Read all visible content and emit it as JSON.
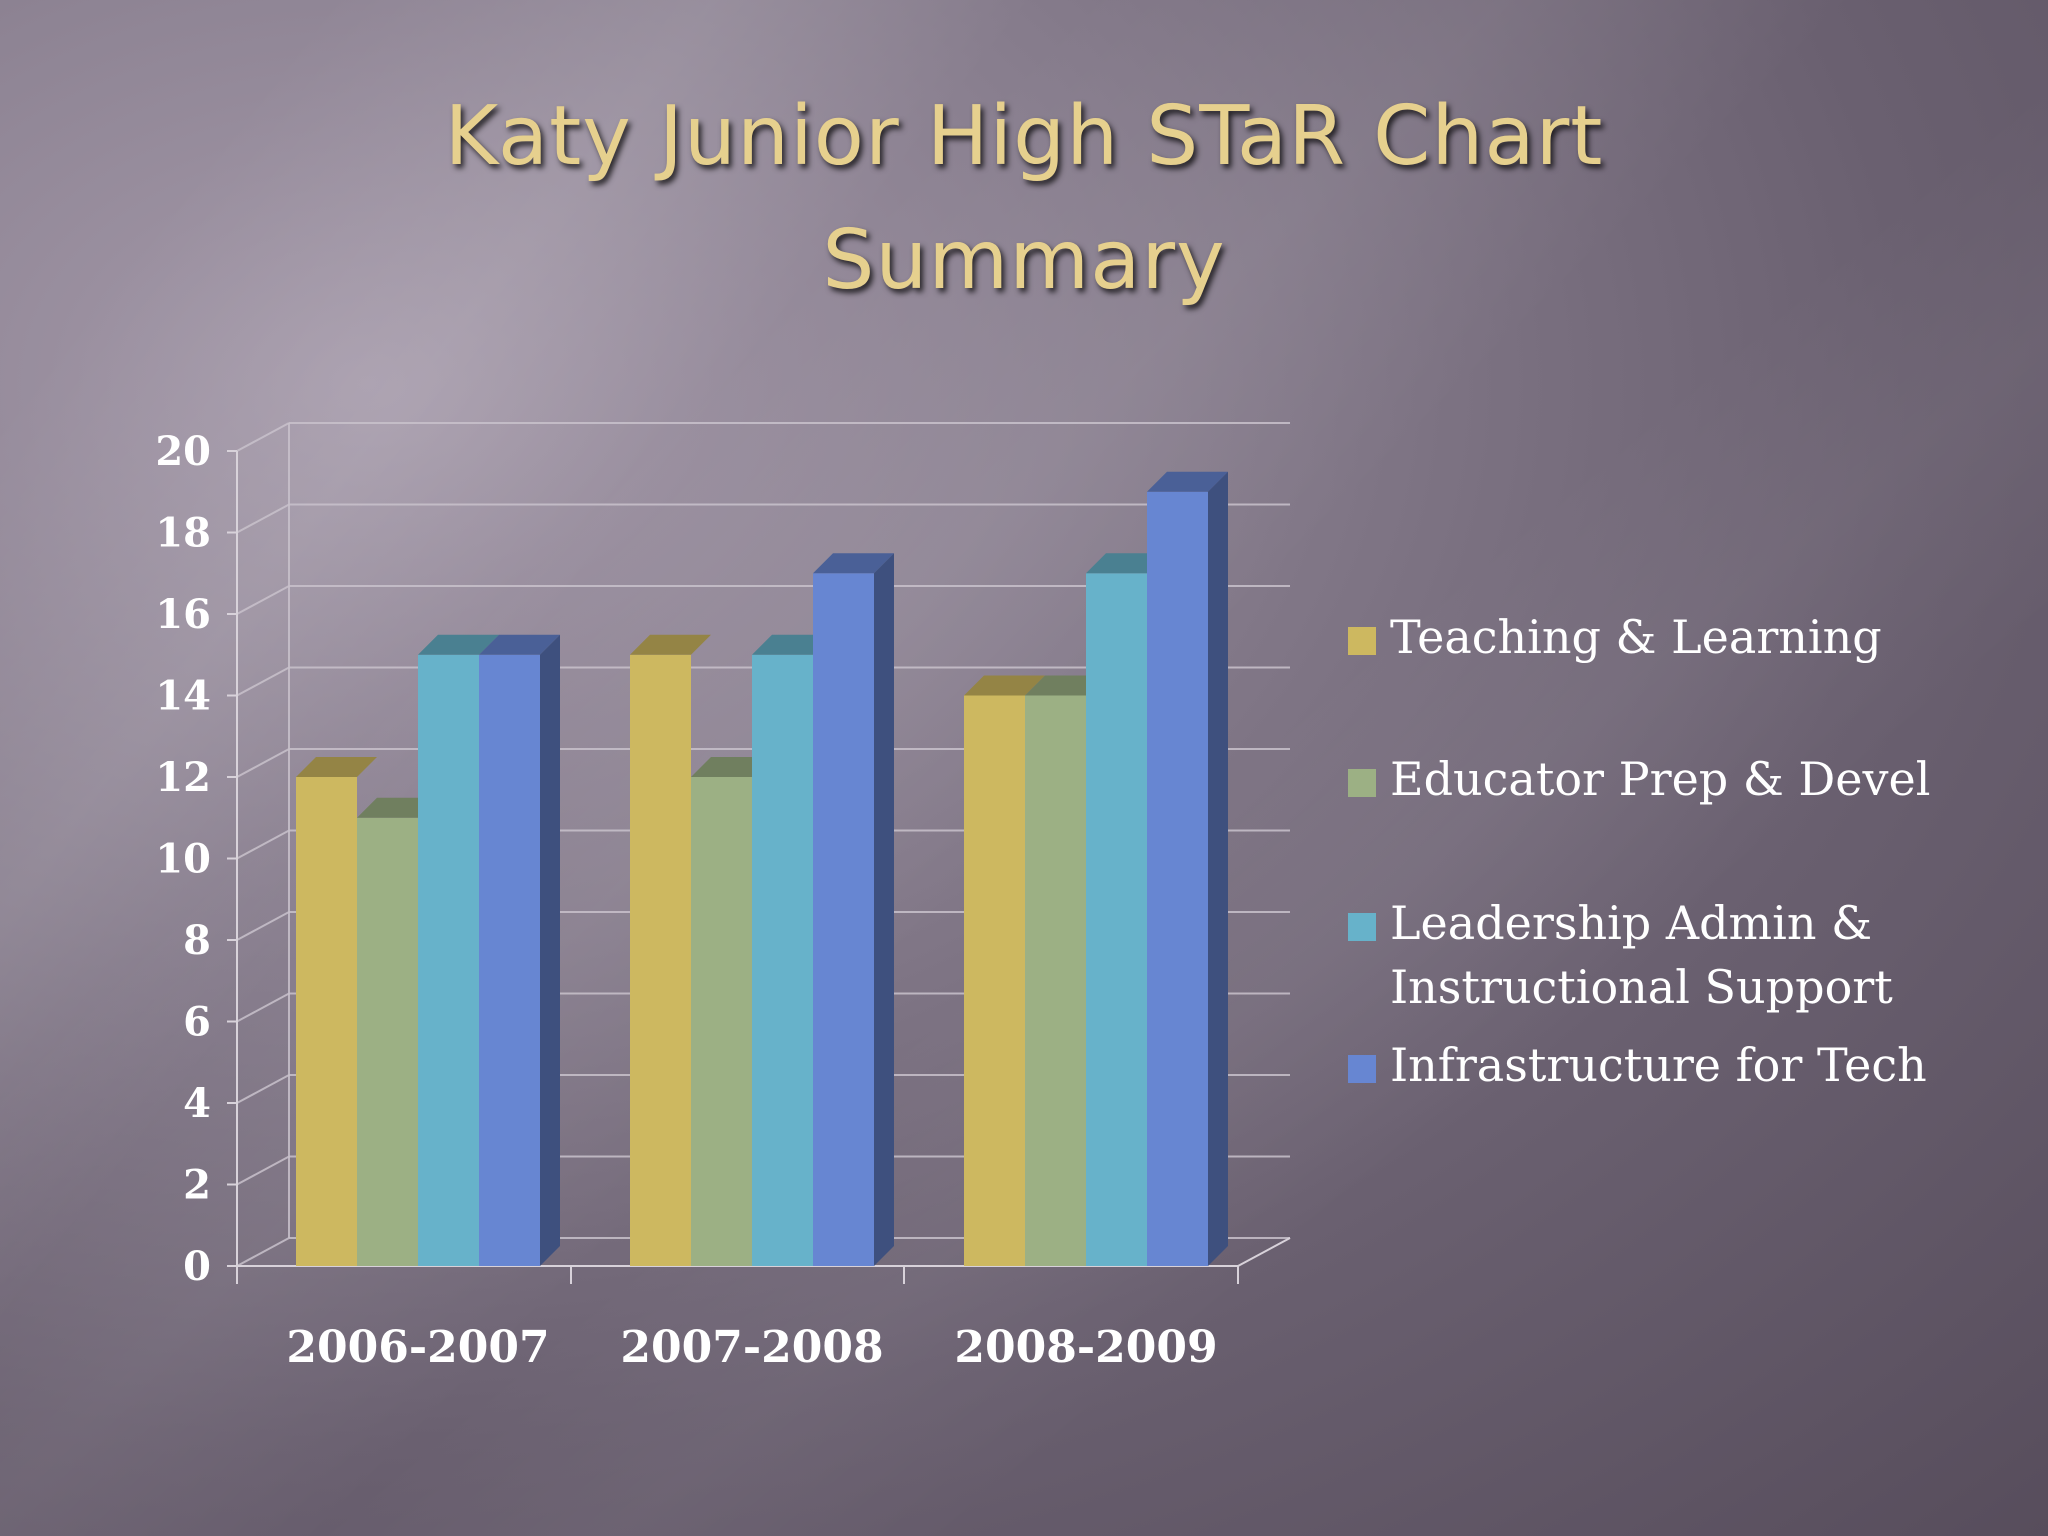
{
  "slide": {
    "title_line1": "Katy Junior High STaR Chart",
    "title_line2": "Summary"
  },
  "chart_data": {
    "type": "bar",
    "style": "3d-clustered-column",
    "title": "",
    "categories": [
      "2006-2007",
      "2007-2008",
      "2008-2009"
    ],
    "series": [
      {
        "name": "Teaching & Learning",
        "values": [
          12,
          15,
          14
        ],
        "color": "#cdb860"
      },
      {
        "name": "Educator Prep & Devel",
        "values": [
          11,
          12,
          14
        ],
        "color": "#9cb084"
      },
      {
        "name": "Leadership Admin &\nInstructional Support",
        "values": [
          15,
          15,
          17
        ],
        "color": "#67b2ca"
      },
      {
        "name": "Infrastructure for Tech",
        "values": [
          15,
          17,
          19
        ],
        "color": "#6786d2"
      }
    ],
    "ylim": [
      0,
      20
    ],
    "yticks": [
      "0",
      "2",
      "4",
      "6",
      "8",
      "10",
      "12",
      "14",
      "16",
      "18",
      "20"
    ],
    "grid": true,
    "legend_position": "right"
  }
}
